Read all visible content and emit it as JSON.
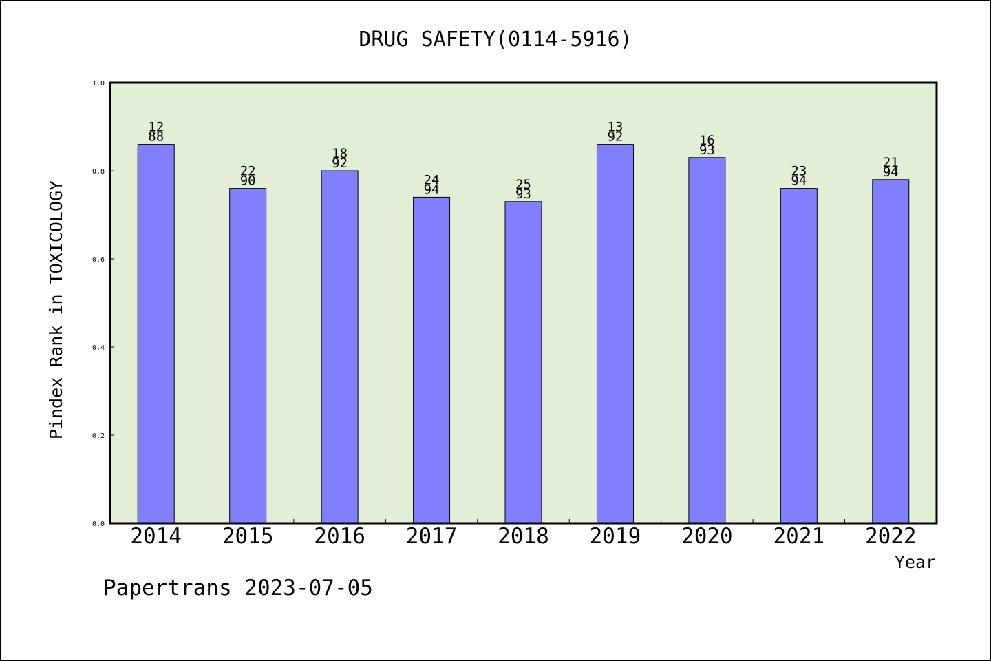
{
  "colors": {
    "plot_bg": "#e2efd6",
    "bar_fill": "#8080ff",
    "bar_stroke": "#000000",
    "text": "#000000"
  },
  "chart_data": {
    "type": "bar",
    "title": "DRUG SAFETY(0114-5916)",
    "xlabel": "Year",
    "ylabel": "Pindex Rank in TOXICOLOGY",
    "ylim": [
      0,
      1.0
    ],
    "yticks": [
      "0.0",
      "0.2",
      "0.4",
      "0.6",
      "0.8",
      "1.0"
    ],
    "grid": false,
    "categories": [
      "2014",
      "2015",
      "2016",
      "2017",
      "2018",
      "2019",
      "2020",
      "2021",
      "2022"
    ],
    "values": [
      0.86,
      0.76,
      0.8,
      0.74,
      0.73,
      0.86,
      0.83,
      0.76,
      0.78
    ],
    "annotations_top": [
      "12",
      "22",
      "18",
      "24",
      "25",
      "13",
      "16",
      "23",
      "21"
    ],
    "annotations_bottom": [
      "88",
      "90",
      "92",
      "94",
      "93",
      "92",
      "93",
      "94",
      "94"
    ]
  },
  "footer": {
    "credit": "Papertrans 2023-07-05"
  }
}
